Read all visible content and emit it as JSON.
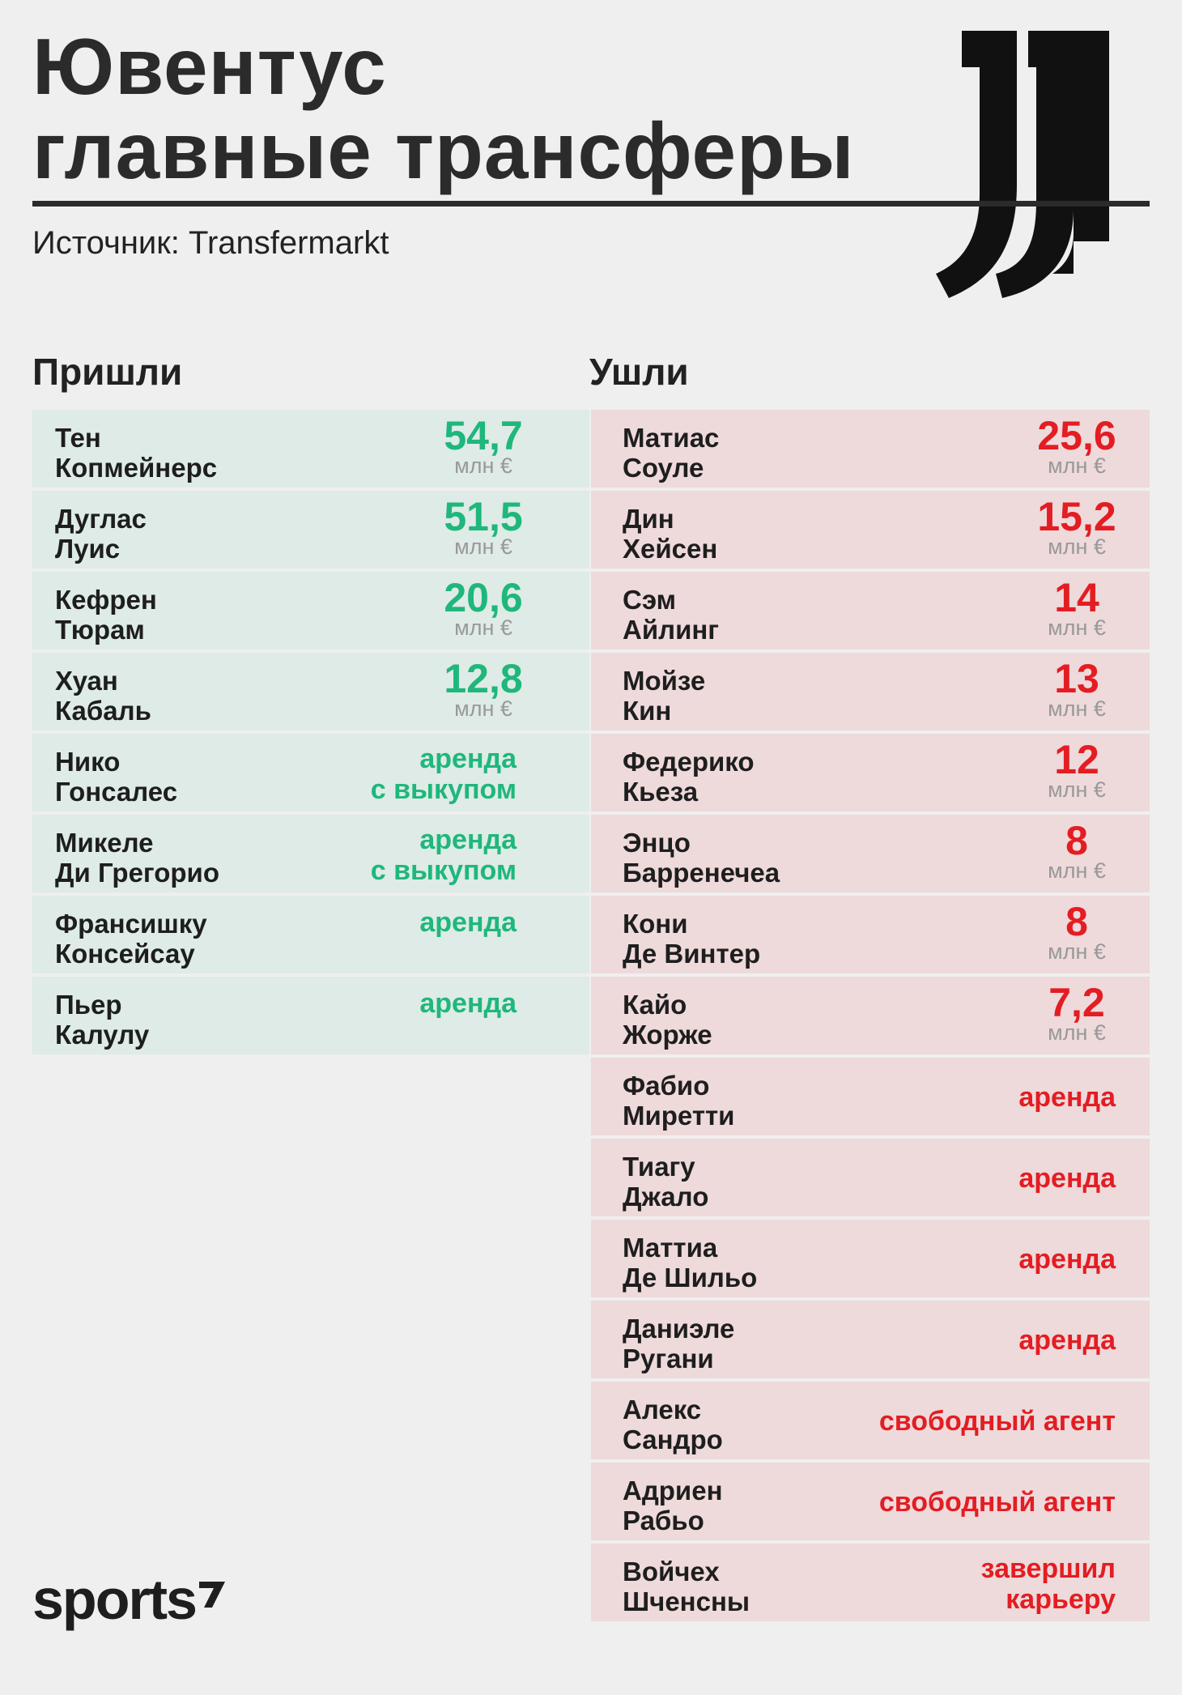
{
  "header": {
    "title_line1": "Ювентус",
    "title_line2": "главные трансферы",
    "source": "Источник: Transfermarkt"
  },
  "columns": {
    "in_title": "Пришли",
    "out_title": "Ушли"
  },
  "incoming": [
    {
      "first": "Тен",
      "last": "Копмейнерс",
      "fee": "54,7",
      "unit": "млн €"
    },
    {
      "first": "Дуглас",
      "last": "Луис",
      "fee": "51,5",
      "unit": "млн €"
    },
    {
      "first": "Кефрен",
      "last": "Тюрам",
      "fee": "20,6",
      "unit": "млн €"
    },
    {
      "first": "Хуан",
      "last": "Кабаль",
      "fee": "12,8",
      "unit": "млн €"
    },
    {
      "first": "Нико",
      "last": "Гонсалес",
      "status1": "аренда",
      "status2": "с выкупом"
    },
    {
      "first": "Микеле",
      "last": "Ди Грегорио",
      "status1": "аренда",
      "status2": "с выкупом"
    },
    {
      "first": "Франсишку",
      "last": "Консейсау",
      "status1": "аренда"
    },
    {
      "first": "Пьер",
      "last": "Калулу",
      "status1": "аренда"
    }
  ],
  "outgoing": [
    {
      "first": "Матиас",
      "last": "Соуле",
      "fee": "25,6",
      "unit": "млн €"
    },
    {
      "first": "Дин",
      "last": "Хейсен",
      "fee": "15,2",
      "unit": "млн €"
    },
    {
      "first": "Сэм",
      "last": "Айлинг",
      "fee": "14",
      "unit": "млн €"
    },
    {
      "first": "Мойзе",
      "last": "Кин",
      "fee": "13",
      "unit": "млн €"
    },
    {
      "first": "Федерико",
      "last": "Кьеза",
      "fee": "12",
      "unit": "млн €"
    },
    {
      "first": "Энцо",
      "last": "Барренечеа",
      "fee": "8",
      "unit": "млн €"
    },
    {
      "first": "Кони",
      "last": "Де Винтер",
      "fee": "8",
      "unit": "млн €"
    },
    {
      "first": "Кайо",
      "last": "Жорже",
      "fee": "7,2",
      "unit": "млн €"
    },
    {
      "first": "Фабио",
      "last": "Миретти",
      "status1": "аренда"
    },
    {
      "first": "Тиагу",
      "last": "Джало",
      "status1": "аренда"
    },
    {
      "first": "Маттиа",
      "last": "Де Шильо",
      "status1": "аренда"
    },
    {
      "first": "Даниэле",
      "last": "Ругани",
      "status1": "аренда"
    },
    {
      "first": "Алекс",
      "last": "Сандро",
      "status1": "свободный агент"
    },
    {
      "first": "Адриен",
      "last": "Рабьо",
      "status1": "свободный агент"
    },
    {
      "first": "Войчех",
      "last": "Шченсны",
      "status1": "завершил",
      "status2": "карьеру"
    }
  ],
  "footer": {
    "brand": "sports"
  },
  "colors": {
    "green": "#1fb77c",
    "red": "#e31d22",
    "in_bg": "#deebe6",
    "out_bg": "#eed9db"
  }
}
